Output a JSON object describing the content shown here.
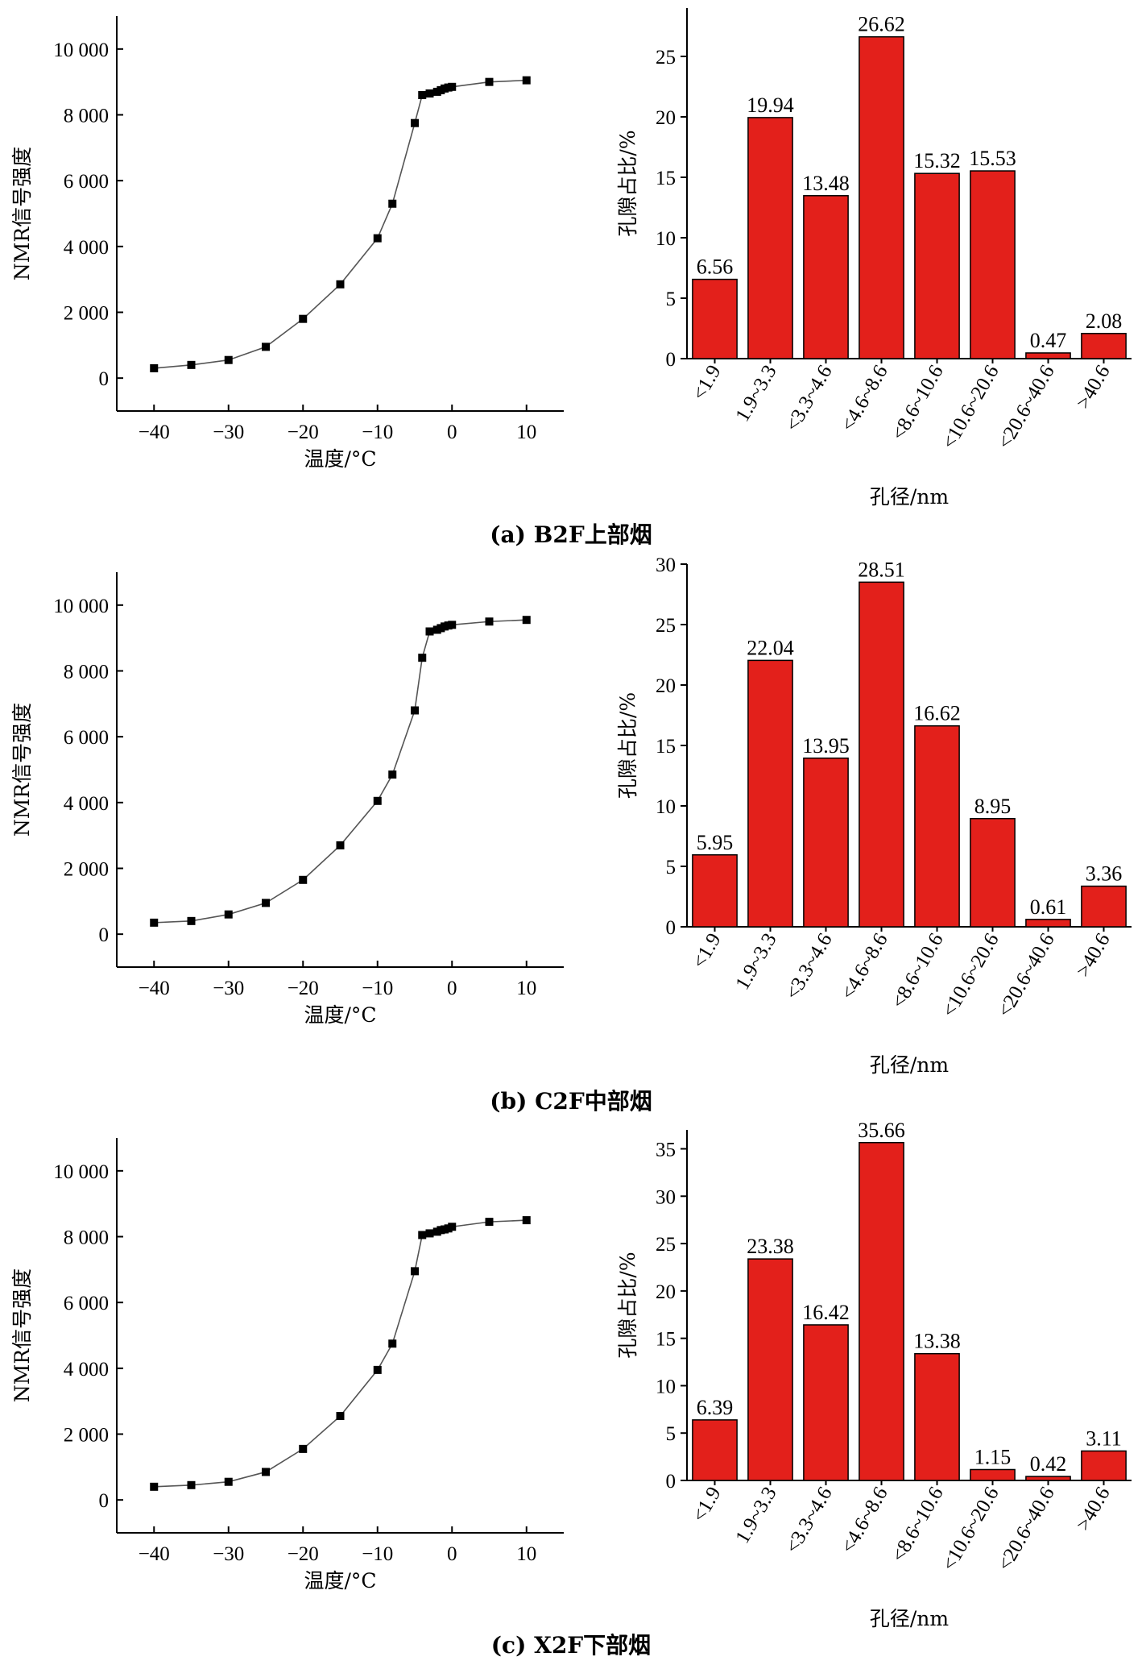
{
  "figure": {
    "panels": [
      {
        "caption": "(a) B2F上部烟",
        "line_chart": {
          "xlabel": "温度/°C",
          "ylabel": "NMR信号强度",
          "xticks": [
            "−40",
            "−30",
            "−20",
            "−10",
            "0",
            "10"
          ],
          "yticks": [
            "0",
            "2 000",
            "4 000",
            "6 000",
            "8 000",
            "10 000"
          ]
        },
        "bar_chart": {
          "xlabel": "孔径/nm",
          "ylabel": "孔隙占比/%",
          "yticks": [
            "0",
            "5",
            "10",
            "15",
            "20",
            "25"
          ]
        }
      },
      {
        "caption": "(b) C2F中部烟",
        "line_chart": {
          "xlabel": "温度/°C",
          "ylabel": "NMR信号强度",
          "xticks": [
            "−40",
            "−30",
            "−20",
            "−10",
            "0",
            "10"
          ],
          "yticks": [
            "0",
            "2 000",
            "4 000",
            "6 000",
            "8 000",
            "10 000"
          ]
        },
        "bar_chart": {
          "xlabel": "孔径/nm",
          "ylabel": "孔隙占比/%",
          "yticks": [
            "0",
            "5",
            "10",
            "15",
            "20",
            "25",
            "30"
          ]
        }
      },
      {
        "caption": "(c) X2F下部烟",
        "line_chart": {
          "xlabel": "温度/°C",
          "ylabel": "NMR信号强度",
          "xticks": [
            "−40",
            "−30",
            "−20",
            "−10",
            "0",
            "10"
          ],
          "yticks": [
            "0",
            "2 000",
            "4 000",
            "6 000",
            "8 000",
            "10 000"
          ]
        },
        "bar_chart": {
          "xlabel": "孔径/nm",
          "ylabel": "孔隙占比/%",
          "yticks": [
            "0",
            "5",
            "10",
            "15",
            "20",
            "25",
            "30",
            "35"
          ]
        }
      }
    ]
  },
  "colors": {
    "bar_fill": "#e3201b",
    "line": "#555555",
    "marker": "#000000"
  },
  "chart_data": [
    {
      "type": "line",
      "xlim": [
        -45,
        15
      ],
      "ylim": [
        -1000,
        11000
      ],
      "x": [
        -40,
        -35,
        -30,
        -25,
        -20,
        -15,
        -10,
        -8,
        -5,
        -4,
        -3,
        -2,
        -1.5,
        -1,
        -0.5,
        0,
        5,
        10
      ],
      "y": [
        300,
        400,
        550,
        950,
        1800,
        2850,
        4250,
        5300,
        7750,
        8600,
        8650,
        8700,
        8750,
        8800,
        8830,
        8850,
        9000,
        9050
      ]
    },
    {
      "type": "bar",
      "categories": [
        "<1.9",
        "1.9~3.3",
        "<3.3~4.6",
        "<4.6~8.6",
        "<8.6~10.6",
        "<10.6~20.6",
        "<20.6~40.6",
        ">40.6"
      ],
      "values": [
        6.56,
        19.94,
        13.48,
        26.62,
        15.32,
        15.53,
        0.47,
        2.08
      ],
      "data_labels": [
        "6.56",
        "19.94",
        "13.48",
        "26.62",
        "15.32",
        "15.53",
        "0.47",
        "2.08"
      ],
      "ylim": [
        0,
        29
      ]
    },
    {
      "type": "line",
      "xlim": [
        -45,
        15
      ],
      "ylim": [
        -1000,
        11000
      ],
      "x": [
        -40,
        -35,
        -30,
        -25,
        -20,
        -15,
        -10,
        -8,
        -5,
        -4,
        -3,
        -2,
        -1.5,
        -1,
        -0.5,
        0,
        5,
        10
      ],
      "y": [
        350,
        400,
        600,
        950,
        1650,
        2700,
        4050,
        4850,
        6800,
        8400,
        9200,
        9250,
        9300,
        9350,
        9380,
        9400,
        9500,
        9550
      ]
    },
    {
      "type": "bar",
      "categories": [
        "<1.9",
        "1.9~3.3",
        "<3.3~4.6",
        "<4.6~8.6",
        "<8.6~10.6",
        "<10.6~20.6",
        "<20.6~40.6",
        ">40.6"
      ],
      "values": [
        5.95,
        22.04,
        13.95,
        28.51,
        16.62,
        8.95,
        0.61,
        3.36
      ],
      "data_labels": [
        "5.95",
        "22.04",
        "13.95",
        "28.51",
        "16.62",
        "8.95",
        "0.61",
        "3.36"
      ],
      "ylim": [
        0,
        30
      ]
    },
    {
      "type": "line",
      "xlim": [
        -45,
        15
      ],
      "ylim": [
        -1000,
        11000
      ],
      "x": [
        -40,
        -35,
        -30,
        -25,
        -20,
        -15,
        -10,
        -8,
        -5,
        -4,
        -3,
        -2,
        -1.5,
        -1,
        -0.5,
        0,
        5,
        10
      ],
      "y": [
        400,
        450,
        550,
        850,
        1550,
        2550,
        3950,
        4750,
        6950,
        8050,
        8100,
        8150,
        8200,
        8220,
        8250,
        8300,
        8450,
        8500
      ]
    },
    {
      "type": "bar",
      "categories": [
        "<1.9",
        "1.9~3.3",
        "<3.3~4.6",
        "<4.6~8.6",
        "<8.6~10.6",
        "<10.6~20.6",
        "<20.6~40.6",
        ">40.6"
      ],
      "values": [
        6.39,
        23.38,
        16.42,
        35.66,
        13.38,
        1.15,
        0.42,
        3.11
      ],
      "data_labels": [
        "6.39",
        "23.38",
        "16.42",
        "35.66",
        "13.38",
        "1.15",
        "0.42",
        "3.11"
      ],
      "ylim": [
        0,
        37
      ]
    }
  ]
}
